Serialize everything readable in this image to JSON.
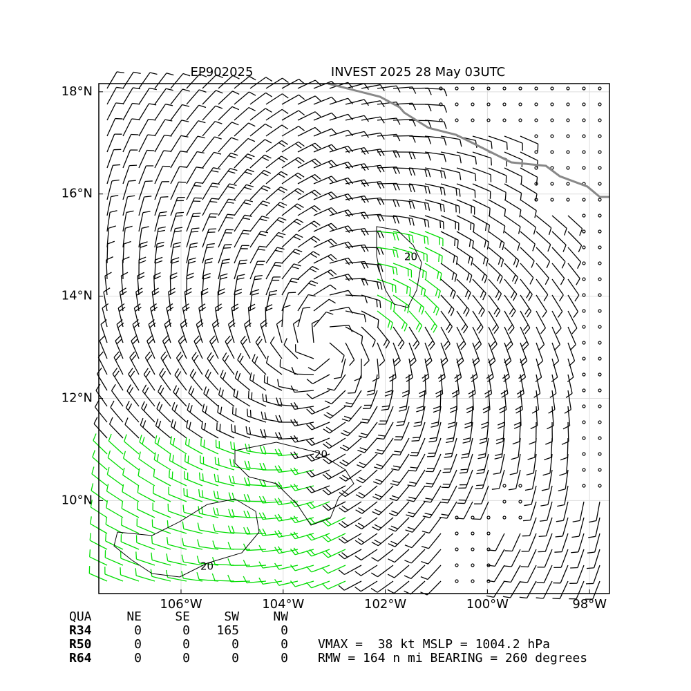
{
  "map": {
    "title_left": "EP902025",
    "title_right": "INVEST 2025 28 May 03UTC",
    "xlim": [
      -107.61,
      -97.61
    ],
    "ylim": [
      8.18,
      18.16
    ],
    "xticks": [
      {
        "value": -106,
        "label": "106°W"
      },
      {
        "value": -104,
        "label": "104°W"
      },
      {
        "value": -102,
        "label": "102°W"
      },
      {
        "value": -100,
        "label": "100°W"
      },
      {
        "value": -98,
        "label": "98°W"
      }
    ],
    "yticks": [
      {
        "value": 10,
        "label": "10°N"
      },
      {
        "value": 12,
        "label": "12°N"
      },
      {
        "value": 14,
        "label": "14°N"
      },
      {
        "value": 16,
        "label": "16°N"
      },
      {
        "value": 18,
        "label": "18°N"
      }
    ],
    "contour_labels": [
      "20",
      "20",
      "20"
    ]
  },
  "table": {
    "header": [
      "QUA",
      "NE",
      "SE",
      "SW",
      "NW"
    ],
    "rows": [
      [
        "R34",
        "0",
        "0",
        "165",
        "0"
      ],
      [
        "R50",
        "0",
        "0",
        "0",
        "0"
      ],
      [
        "R64",
        "0",
        "0",
        "0",
        "0"
      ]
    ]
  },
  "info": [
    "VMAX =  38 kt MSLP = 1004.2 hPa",
    "RMW = 164 n mi BEARING = 260 degrees"
  ]
}
